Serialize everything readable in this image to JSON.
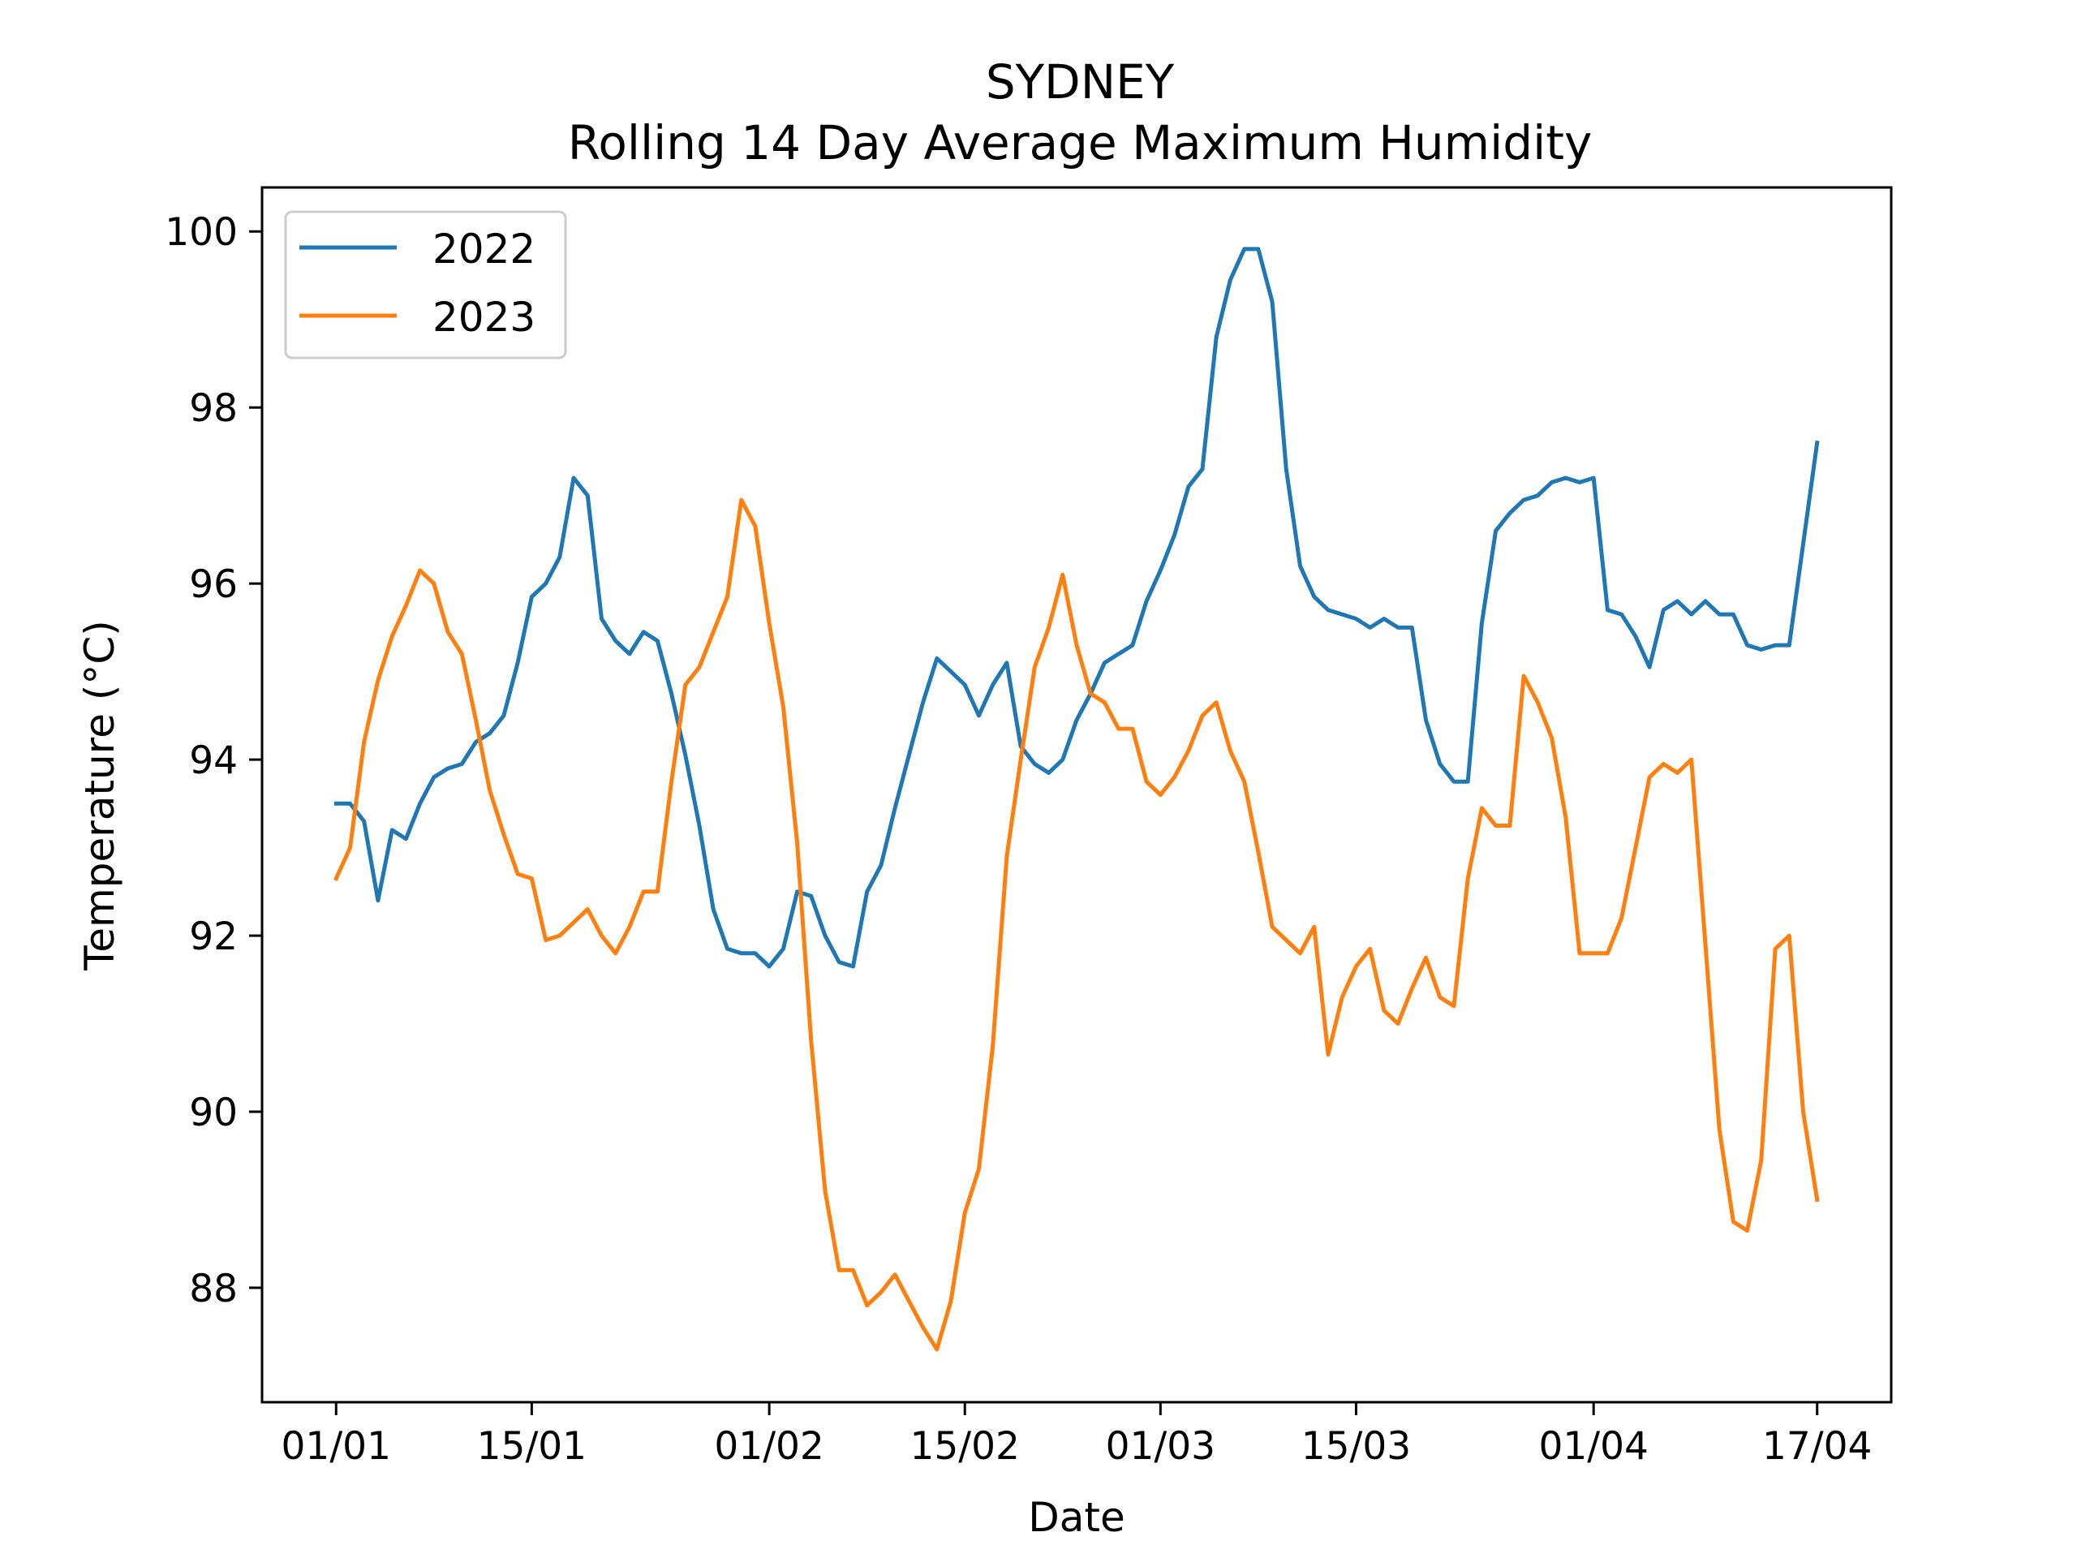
{
  "chart_data": {
    "type": "line",
    "title": "SYDNEY",
    "subtitle": "Rolling 14 Day Average Maximum Humidity",
    "xlabel": "Date",
    "ylabel": "Temperature (°C)",
    "x_tick_labels": [
      "01/01",
      "15/01",
      "01/02",
      "15/02",
      "01/03",
      "15/03",
      "01/04",
      "17/04"
    ],
    "x_ticks_day": [
      1,
      15,
      32,
      46,
      60,
      74,
      91,
      107
    ],
    "y_ticks": [
      88,
      90,
      92,
      94,
      96,
      98,
      100
    ],
    "ylim": [
      86.7,
      100.5
    ],
    "xlim_day": [
      -4.3,
      112.3
    ],
    "grid": false,
    "legend_position": "top-left",
    "x_day_labels_note": "day of year",
    "series": [
      {
        "name": "2022",
        "color": "#1f77b4",
        "points": [
          [
            1,
            93.5
          ],
          [
            2,
            93.5
          ],
          [
            3,
            93.3
          ],
          [
            4,
            92.4
          ],
          [
            5,
            93.2
          ],
          [
            6,
            93.1
          ],
          [
            7,
            93.5
          ],
          [
            8,
            93.8
          ],
          [
            9,
            93.9
          ],
          [
            10,
            93.95
          ],
          [
            11,
            94.2
          ],
          [
            12,
            94.3
          ],
          [
            13,
            94.5
          ],
          [
            14,
            95.1
          ],
          [
            15,
            95.85
          ],
          [
            16,
            96.0
          ],
          [
            17,
            96.3
          ],
          [
            18,
            97.2
          ],
          [
            19,
            97.0
          ],
          [
            20,
            95.6
          ],
          [
            21,
            95.35
          ],
          [
            22,
            95.2
          ],
          [
            23,
            95.45
          ],
          [
            24,
            95.35
          ],
          [
            25,
            94.75
          ],
          [
            26,
            94.05
          ],
          [
            27,
            93.25
          ],
          [
            28,
            92.3
          ],
          [
            29,
            91.85
          ],
          [
            30,
            91.8
          ],
          [
            31,
            91.8
          ],
          [
            32,
            91.65
          ],
          [
            33,
            91.85
          ],
          [
            34,
            92.5
          ],
          [
            35,
            92.45
          ],
          [
            36,
            92.0
          ],
          [
            37,
            91.7
          ],
          [
            38,
            91.65
          ],
          [
            39,
            92.5
          ],
          [
            40,
            92.8
          ],
          [
            41,
            93.45
          ],
          [
            42,
            94.05
          ],
          [
            43,
            94.65
          ],
          [
            44,
            95.15
          ],
          [
            45,
            95.0
          ],
          [
            46,
            94.85
          ],
          [
            47,
            94.5
          ],
          [
            48,
            94.85
          ],
          [
            49,
            95.1
          ],
          [
            50,
            94.15
          ],
          [
            51,
            93.95
          ],
          [
            52,
            93.85
          ],
          [
            53,
            94.0
          ],
          [
            54,
            94.45
          ],
          [
            55,
            94.75
          ],
          [
            56,
            95.1
          ],
          [
            57,
            95.2
          ],
          [
            58,
            95.3
          ],
          [
            59,
            95.8
          ],
          [
            60,
            96.15
          ],
          [
            61,
            96.55
          ],
          [
            62,
            97.1
          ],
          [
            63,
            97.3
          ],
          [
            64,
            98.8
          ],
          [
            65,
            99.45
          ],
          [
            66,
            99.8
          ],
          [
            67,
            99.8
          ],
          [
            68,
            99.2
          ],
          [
            69,
            97.3
          ],
          [
            70,
            96.2
          ],
          [
            71,
            95.85
          ],
          [
            72,
            95.7
          ],
          [
            73,
            95.65
          ],
          [
            74,
            95.6
          ],
          [
            75,
            95.5
          ],
          [
            76,
            95.6
          ],
          [
            77,
            95.5
          ],
          [
            78,
            95.5
          ],
          [
            79,
            94.45
          ],
          [
            80,
            93.95
          ],
          [
            81,
            93.75
          ],
          [
            82,
            93.75
          ],
          [
            83,
            95.55
          ],
          [
            84,
            96.6
          ],
          [
            85,
            96.8
          ],
          [
            86,
            96.95
          ],
          [
            87,
            97.0
          ],
          [
            88,
            97.15
          ],
          [
            89,
            97.2
          ],
          [
            90,
            97.15
          ],
          [
            91,
            97.2
          ],
          [
            92,
            95.7
          ],
          [
            93,
            95.65
          ],
          [
            94,
            95.4
          ],
          [
            95,
            95.05
          ],
          [
            96,
            95.7
          ],
          [
            97,
            95.8
          ],
          [
            98,
            95.65
          ],
          [
            99,
            95.8
          ],
          [
            100,
            95.65
          ],
          [
            101,
            95.65
          ],
          [
            102,
            95.3
          ],
          [
            103,
            95.25
          ],
          [
            104,
            95.3
          ],
          [
            105,
            95.3
          ],
          [
            106,
            96.45
          ],
          [
            107,
            97.6
          ]
        ]
      },
      {
        "name": "2023",
        "color": "#ff7f0e",
        "points": [
          [
            1,
            92.65
          ],
          [
            2,
            93.0
          ],
          [
            3,
            94.2
          ],
          [
            4,
            94.9
          ],
          [
            5,
            95.4
          ],
          [
            6,
            95.75
          ],
          [
            7,
            96.15
          ],
          [
            8,
            96.0
          ],
          [
            9,
            95.45
          ],
          [
            10,
            95.2
          ],
          [
            11,
            94.45
          ],
          [
            12,
            93.65
          ],
          [
            13,
            93.15
          ],
          [
            14,
            92.7
          ],
          [
            15,
            92.65
          ],
          [
            16,
            91.95
          ],
          [
            17,
            92.0
          ],
          [
            18,
            92.15
          ],
          [
            19,
            92.3
          ],
          [
            20,
            92.0
          ],
          [
            21,
            91.8
          ],
          [
            22,
            92.1
          ],
          [
            23,
            92.5
          ],
          [
            24,
            92.5
          ],
          [
            25,
            93.75
          ],
          [
            26,
            94.85
          ],
          [
            27,
            95.05
          ],
          [
            28,
            95.45
          ],
          [
            29,
            95.85
          ],
          [
            30,
            96.95
          ],
          [
            31,
            96.65
          ],
          [
            32,
            95.55
          ],
          [
            33,
            94.6
          ],
          [
            34,
            93.05
          ],
          [
            35,
            90.8
          ],
          [
            36,
            89.1
          ],
          [
            37,
            88.2
          ],
          [
            38,
            88.2
          ],
          [
            39,
            87.8
          ],
          [
            40,
            87.95
          ],
          [
            41,
            88.15
          ],
          [
            42,
            87.85
          ],
          [
            43,
            87.55
          ],
          [
            44,
            87.3
          ],
          [
            45,
            87.85
          ],
          [
            46,
            88.85
          ],
          [
            47,
            89.35
          ],
          [
            48,
            90.75
          ],
          [
            49,
            92.9
          ],
          [
            50,
            94.0
          ],
          [
            51,
            95.05
          ],
          [
            52,
            95.5
          ],
          [
            53,
            96.1
          ],
          [
            54,
            95.3
          ],
          [
            55,
            94.75
          ],
          [
            56,
            94.65
          ],
          [
            57,
            94.35
          ],
          [
            58,
            94.35
          ],
          [
            59,
            93.75
          ],
          [
            60,
            93.6
          ],
          [
            61,
            93.8
          ],
          [
            62,
            94.1
          ],
          [
            63,
            94.5
          ],
          [
            64,
            94.65
          ],
          [
            65,
            94.1
          ],
          [
            66,
            93.75
          ],
          [
            67,
            92.95
          ],
          [
            68,
            92.1
          ],
          [
            69,
            91.95
          ],
          [
            70,
            91.8
          ],
          [
            71,
            92.1
          ],
          [
            72,
            90.65
          ],
          [
            73,
            91.3
          ],
          [
            74,
            91.65
          ],
          [
            75,
            91.85
          ],
          [
            76,
            91.15
          ],
          [
            77,
            91.0
          ],
          [
            78,
            91.4
          ],
          [
            79,
            91.75
          ],
          [
            80,
            91.3
          ],
          [
            81,
            91.2
          ],
          [
            82,
            92.65
          ],
          [
            83,
            93.45
          ],
          [
            84,
            93.25
          ],
          [
            85,
            93.25
          ],
          [
            86,
            94.95
          ],
          [
            87,
            94.65
          ],
          [
            88,
            94.25
          ],
          [
            89,
            93.35
          ],
          [
            90,
            91.8
          ],
          [
            91,
            91.8
          ],
          [
            92,
            91.8
          ],
          [
            93,
            92.2
          ],
          [
            94,
            93.0
          ],
          [
            95,
            93.8
          ],
          [
            96,
            93.95
          ],
          [
            97,
            93.85
          ],
          [
            98,
            94.0
          ],
          [
            99,
            91.9
          ],
          [
            100,
            89.8
          ],
          [
            101,
            88.75
          ],
          [
            102,
            88.65
          ],
          [
            103,
            89.45
          ],
          [
            104,
            91.85
          ],
          [
            105,
            92.0
          ],
          [
            106,
            90.0
          ],
          [
            107,
            89.0
          ]
        ]
      }
    ]
  }
}
